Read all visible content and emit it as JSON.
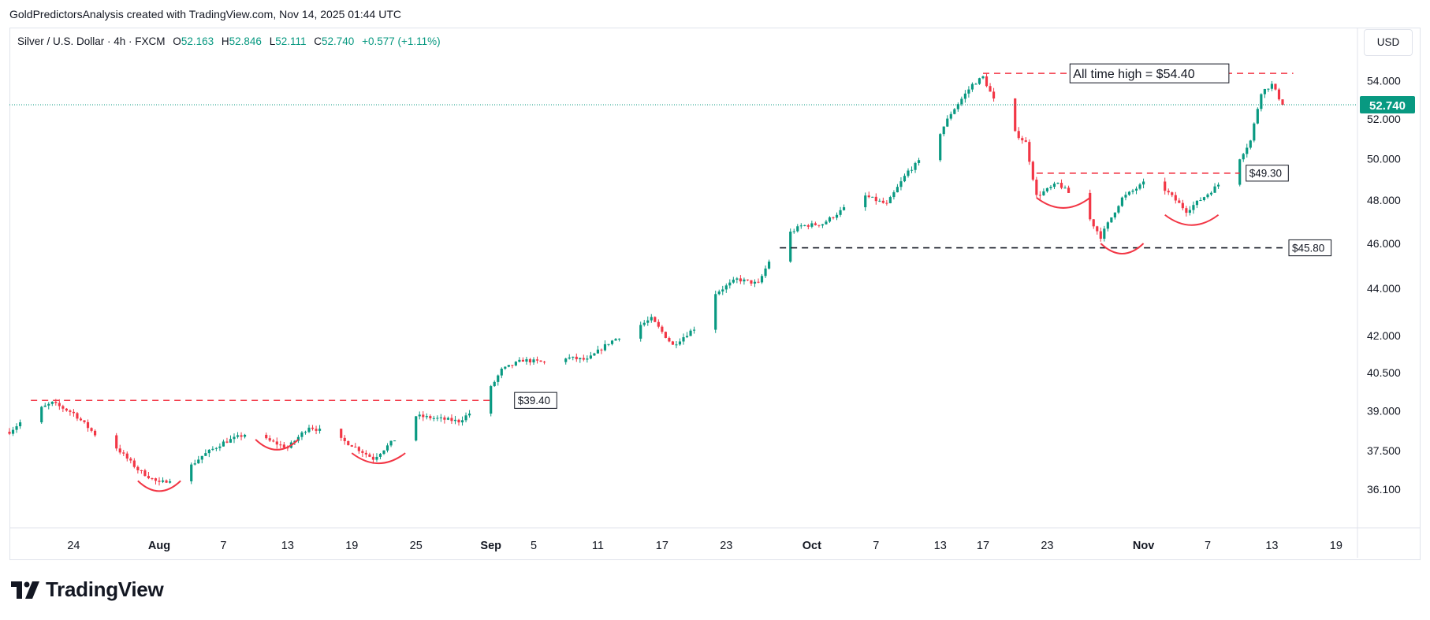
{
  "header": {
    "text": "GoldPredictorsAnalysis created with TradingView.com, Nov 14, 2025 01:44 UTC"
  },
  "legend": {
    "symbol": "Silver / U.S. Dollar · 4h · FXCM",
    "open_label": "O",
    "open": "52.163",
    "high_label": "H",
    "high": "52.846",
    "low_label": "L",
    "low": "52.111",
    "close_label": "C",
    "close": "52.740",
    "change": "+0.577 (+1.11%)"
  },
  "currency_button": "USD",
  "footer": {
    "brand": "TradingView"
  },
  "colors": {
    "up": "#089981",
    "down": "#f23645",
    "resistance": "#f23645",
    "support": "#131722",
    "price_tag": "#089981"
  },
  "chart_data": {
    "type": "candlestick",
    "timeframe": "4h",
    "y_scale": "log",
    "ylim": [
      34.8,
      55.3
    ],
    "y_ticks": [
      {
        "value": 54.0,
        "label": "54.000"
      },
      {
        "value": 52.0,
        "label": "52.000"
      },
      {
        "value": 50.0,
        "label": "50.000"
      },
      {
        "value": 48.0,
        "label": "48.000"
      },
      {
        "value": 46.0,
        "label": "46.000"
      },
      {
        "value": 44.0,
        "label": "44.000"
      },
      {
        "value": 42.0,
        "label": "42.000"
      },
      {
        "value": 40.5,
        "label": "40.500"
      },
      {
        "value": 39.0,
        "label": "39.000"
      },
      {
        "value": 37.5,
        "label": "37.500"
      },
      {
        "value": 36.1,
        "label": "36.100"
      }
    ],
    "x_range": [
      "2025-07-18",
      "2025-11-21"
    ],
    "x_ticks": [
      {
        "date": "2025-07-24",
        "label": "24",
        "bold": false
      },
      {
        "date": "2025-08-01",
        "label": "Aug",
        "bold": true
      },
      {
        "date": "2025-08-07",
        "label": "7",
        "bold": false
      },
      {
        "date": "2025-08-13",
        "label": "13",
        "bold": false
      },
      {
        "date": "2025-08-19",
        "label": "19",
        "bold": false
      },
      {
        "date": "2025-08-25",
        "label": "25",
        "bold": false
      },
      {
        "date": "2025-09-01",
        "label": "Sep",
        "bold": true
      },
      {
        "date": "2025-09-05",
        "label": "5",
        "bold": false
      },
      {
        "date": "2025-09-11",
        "label": "11",
        "bold": false
      },
      {
        "date": "2025-09-17",
        "label": "17",
        "bold": false
      },
      {
        "date": "2025-09-23",
        "label": "23",
        "bold": false
      },
      {
        "date": "2025-10-01",
        "label": "Oct",
        "bold": true
      },
      {
        "date": "2025-10-07",
        "label": "7",
        "bold": false
      },
      {
        "date": "2025-10-13",
        "label": "13",
        "bold": false
      },
      {
        "date": "2025-10-17",
        "label": "17",
        "bold": false
      },
      {
        "date": "2025-10-23",
        "label": "23",
        "bold": false
      },
      {
        "date": "2025-11-01",
        "label": "Nov",
        "bold": true
      },
      {
        "date": "2025-11-07",
        "label": "7",
        "bold": false
      },
      {
        "date": "2025-11-13",
        "label": "13",
        "bold": false
      },
      {
        "date": "2025-11-19",
        "label": "19",
        "bold": false
      }
    ],
    "last_price": {
      "value": 52.74,
      "label": "52.740"
    },
    "price_path": [
      [
        "2025-07-18",
        38.2
      ],
      [
        "2025-07-20",
        38.9
      ],
      [
        "2025-07-22",
        39.3
      ],
      [
        "2025-07-24",
        38.9
      ],
      [
        "2025-07-26",
        38.1
      ],
      [
        "2025-07-28",
        37.6
      ],
      [
        "2025-07-30",
        36.8
      ],
      [
        "2025-08-01",
        36.3
      ],
      [
        "2025-08-03",
        36.6
      ],
      [
        "2025-08-05",
        37.3
      ],
      [
        "2025-08-07",
        37.8
      ],
      [
        "2025-08-09",
        38.1
      ],
      [
        "2025-08-11",
        37.9
      ],
      [
        "2025-08-13",
        37.6
      ],
      [
        "2025-08-15",
        38.4
      ],
      [
        "2025-08-17",
        38.1
      ],
      [
        "2025-08-19",
        37.7
      ],
      [
        "2025-08-21",
        37.2
      ],
      [
        "2025-08-23",
        37.9
      ],
      [
        "2025-08-25",
        38.8
      ],
      [
        "2025-08-27",
        38.7
      ],
      [
        "2025-08-29",
        38.6
      ],
      [
        "2025-08-31",
        39.2
      ],
      [
        "2025-09-02",
        40.6
      ],
      [
        "2025-09-04",
        41.0
      ],
      [
        "2025-09-06",
        40.9
      ],
      [
        "2025-09-08",
        41.1
      ],
      [
        "2025-09-10",
        41.0
      ],
      [
        "2025-09-12",
        41.7
      ],
      [
        "2025-09-14",
        42.2
      ],
      [
        "2025-09-16",
        42.7
      ],
      [
        "2025-09-18",
        41.6
      ],
      [
        "2025-09-20",
        42.3
      ],
      [
        "2025-09-22",
        43.8
      ],
      [
        "2025-09-24",
        44.4
      ],
      [
        "2025-09-26",
        44.2
      ],
      [
        "2025-09-28",
        46.2
      ],
      [
        "2025-09-30",
        46.8
      ],
      [
        "2025-10-02",
        46.9
      ],
      [
        "2025-10-04",
        47.6
      ],
      [
        "2025-10-06",
        48.2
      ],
      [
        "2025-10-08",
        47.8
      ],
      [
        "2025-10-10",
        49.4
      ],
      [
        "2025-10-12",
        50.3
      ],
      [
        "2025-10-14",
        52.3
      ],
      [
        "2025-10-16",
        53.8
      ],
      [
        "2025-10-17",
        54.2
      ],
      [
        "2025-10-19",
        51.8
      ],
      [
        "2025-10-21",
        50.8
      ],
      [
        "2025-10-22",
        48.2
      ],
      [
        "2025-10-24",
        48.8
      ],
      [
        "2025-10-26",
        47.9
      ],
      [
        "2025-10-28",
        46.3
      ],
      [
        "2025-10-30",
        48.1
      ],
      [
        "2025-11-01",
        48.8
      ],
      [
        "2025-11-03",
        48.5
      ],
      [
        "2025-11-05",
        47.5
      ],
      [
        "2025-11-07",
        48.3
      ],
      [
        "2025-11-09",
        49.2
      ],
      [
        "2025-11-11",
        50.9
      ],
      [
        "2025-11-12",
        53.4
      ],
      [
        "2025-11-13",
        53.8
      ],
      [
        "2025-11-14",
        52.74
      ]
    ],
    "levels": [
      {
        "value": 54.4,
        "from": "2025-10-17",
        "to": "2025-11-15",
        "style": "dashed",
        "color": "#f23645",
        "label": "All time high = $54.40"
      },
      {
        "value": 49.3,
        "from": "2025-10-22",
        "to": "2025-11-10",
        "style": "dashed",
        "color": "#f23645",
        "label": "$49.30"
      },
      {
        "value": 45.8,
        "from": "2025-09-28",
        "to": "2025-11-14",
        "style": "dashed",
        "color": "#131722",
        "label": "$45.80"
      },
      {
        "value": 39.4,
        "from": "2025-07-20",
        "to": "2025-09-01",
        "style": "dashed",
        "color": "#f23645",
        "label": "$39.40"
      }
    ],
    "arcs": [
      {
        "from": "2025-07-30",
        "to": "2025-08-03",
        "bottom": 36.0
      },
      {
        "from": "2025-08-10",
        "to": "2025-08-14",
        "bottom": 37.5
      },
      {
        "from": "2025-08-19",
        "to": "2025-08-24",
        "bottom": 37.0
      },
      {
        "from": "2025-10-22",
        "to": "2025-10-27",
        "bottom": 47.6
      },
      {
        "from": "2025-10-28",
        "to": "2025-11-01",
        "bottom": 45.5
      },
      {
        "from": "2025-11-03",
        "to": "2025-11-08",
        "bottom": 46.8
      }
    ]
  }
}
